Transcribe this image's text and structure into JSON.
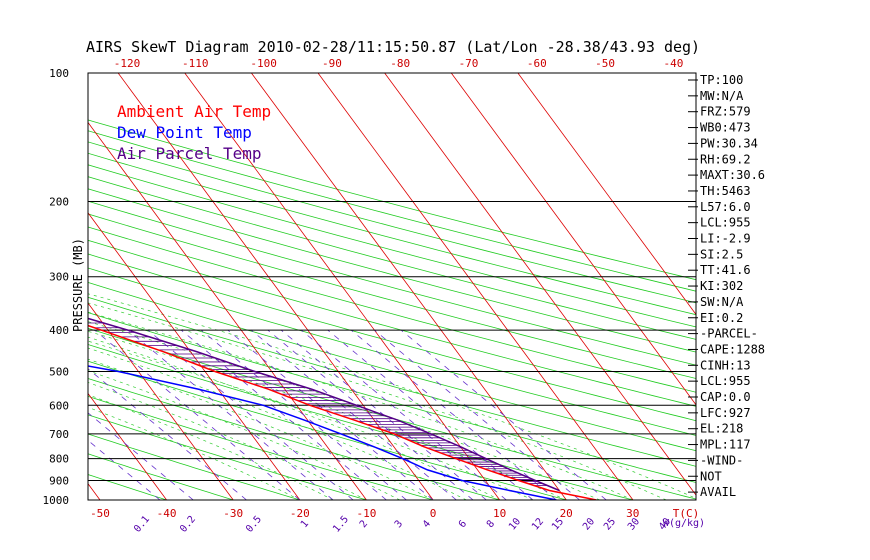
{
  "chart_data": {
    "type": "skewt",
    "title": "AIRS SkewT Diagram 2010-02-28/11:15:50.87 (Lat/Lon -28.38/43.93 deg)",
    "ylabel": "PRESSURE (MB)",
    "xlabel": "T(C)",
    "mixing_label": "W(g/kg)",
    "pressure_ticks": [
      100,
      200,
      300,
      400,
      500,
      600,
      700,
      800,
      900,
      1000
    ],
    "top_temp_ticks": [
      -120,
      -110,
      -100,
      -90,
      -80,
      -70,
      -60,
      -50,
      -40
    ],
    "bottom_temp_ticks": [
      -50,
      -40,
      -30,
      -20,
      -10,
      0,
      10,
      20,
      30
    ],
    "mixing_ratio_ticks": [
      "0.1",
      "0.2",
      "0.5",
      "1",
      "1.5",
      "2",
      "3",
      "4",
      "6",
      "8",
      "10",
      "12",
      "15",
      "20",
      "25",
      "30",
      "40"
    ],
    "legend": [
      {
        "name": "Ambient Air Temp",
        "color": "#ff0000"
      },
      {
        "name": "Dew Point Temp",
        "color": "#0000ff"
      },
      {
        "name": "Air Parcel Temp",
        "color": "#550088"
      }
    ],
    "series": [
      {
        "name": "Ambient Air Temp",
        "color": "#ff0000",
        "points": [
          [
            100,
            -76.5
          ],
          [
            140,
            -77
          ],
          [
            180,
            -73
          ],
          [
            220,
            -64
          ],
          [
            260,
            -55.5
          ],
          [
            300,
            -48.5
          ],
          [
            350,
            -39
          ],
          [
            400,
            -31
          ],
          [
            450,
            -24
          ],
          [
            500,
            -18.5
          ],
          [
            550,
            -12.5
          ],
          [
            600,
            -8
          ],
          [
            650,
            -3
          ],
          [
            700,
            1.5
          ],
          [
            750,
            4.5
          ],
          [
            800,
            8
          ],
          [
            850,
            11.5
          ],
          [
            900,
            15
          ],
          [
            950,
            18.5
          ],
          [
            1000,
            24.5
          ]
        ]
      },
      {
        "name": "Dew Point Temp",
        "color": "#0000ff",
        "points": [
          [
            100,
            -101
          ],
          [
            130,
            -106
          ],
          [
            150,
            -109
          ],
          [
            200,
            -104
          ],
          [
            250,
            -95
          ],
          [
            300,
            -86
          ],
          [
            350,
            -75
          ],
          [
            400,
            -65
          ],
          [
            450,
            -47
          ],
          [
            500,
            -33
          ],
          [
            550,
            -23
          ],
          [
            600,
            -15
          ],
          [
            650,
            -10.5
          ],
          [
            700,
            -6.5
          ],
          [
            750,
            -3
          ],
          [
            800,
            0
          ],
          [
            850,
            2.5
          ],
          [
            900,
            6.5
          ],
          [
            950,
            12.5
          ],
          [
            1000,
            18.5
          ]
        ]
      },
      {
        "name": "Air Parcel Temp",
        "color": "#550088",
        "points": [
          [
            100,
            -131
          ],
          [
            130,
            -121
          ],
          [
            160,
            -107
          ],
          [
            200,
            -89
          ],
          [
            250,
            -67
          ],
          [
            300,
            -50
          ],
          [
            350,
            -37
          ],
          [
            400,
            -27
          ],
          [
            450,
            -19
          ],
          [
            500,
            -12.5
          ],
          [
            550,
            -6
          ],
          [
            600,
            -1
          ],
          [
            650,
            3.5
          ],
          [
            700,
            7
          ],
          [
            750,
            10
          ],
          [
            800,
            12.5
          ],
          [
            850,
            15
          ],
          [
            900,
            17.5
          ],
          [
            950,
            20
          ]
        ]
      }
    ],
    "indices": [
      "TP:100",
      "MW:N/A",
      "FRZ:579",
      "WB0:473",
      "PW:30.34",
      "RH:69.2",
      "MAXT:30.6",
      "TH:5463",
      "L57:6.0",
      "LCL:955",
      "LI:-2.9",
      "SI:2.5",
      "TT:41.6",
      "KI:302",
      "SW:N/A",
      "EI:0.2",
      "-PARCEL-",
      "CAPE:1288",
      "CINH:13",
      "LCL:955",
      "CAP:0.0",
      "LFC:927",
      "EL:218",
      "MPL:117",
      "-WIND-",
      "NOT",
      "AVAIL"
    ]
  }
}
